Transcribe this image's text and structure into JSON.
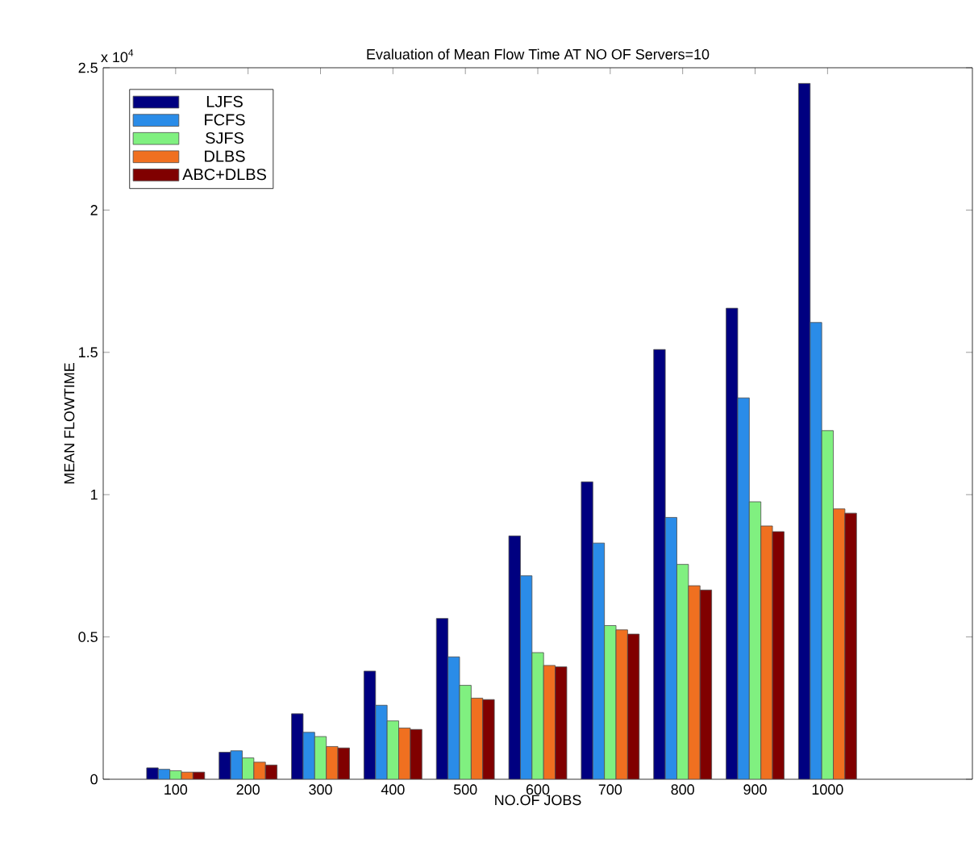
{
  "chart_data": {
    "type": "bar",
    "title": "Evaluation of Mean Flow Time AT NO OF Servers=10",
    "xlabel": "NO.OF JOBS",
    "ylabel": "MEAN FLOWTIME",
    "annotations": [
      "x 10$^{4}$"
    ],
    "categories": [
      "100",
      "200",
      "300",
      "400",
      "500",
      "600",
      "700",
      "800",
      "900",
      "1000"
    ],
    "series": [
      {
        "name": "LJFS",
        "color": "#000080",
        "values": [
          0.04,
          0.095,
          0.23,
          0.38,
          0.565,
          0.855,
          1.045,
          1.51,
          1.655,
          2.445
        ]
      },
      {
        "name": "FCFS",
        "color": "#2a8ce8",
        "values": [
          0.035,
          0.1,
          0.165,
          0.26,
          0.43,
          0.715,
          0.83,
          0.92,
          1.34,
          1.605
        ]
      },
      {
        "name": "SJFS",
        "color": "#80f080",
        "values": [
          0.03,
          0.075,
          0.15,
          0.205,
          0.33,
          0.445,
          0.54,
          0.755,
          0.975,
          1.225
        ]
      },
      {
        "name": "DLBS",
        "color": "#f07020",
        "values": [
          0.025,
          0.06,
          0.115,
          0.18,
          0.285,
          0.4,
          0.525,
          0.68,
          0.89,
          0.95
        ]
      },
      {
        "name": "ABC+DLBS",
        "color": "#800000",
        "values": [
          0.025,
          0.05,
          0.11,
          0.175,
          0.28,
          0.395,
          0.51,
          0.665,
          0.87,
          0.935
        ]
      }
    ],
    "ylim": [
      0,
      2.5
    ],
    "yticks": [
      0,
      0.5,
      1,
      1.5,
      2,
      2.5
    ],
    "grid": false,
    "legend": "top left"
  }
}
